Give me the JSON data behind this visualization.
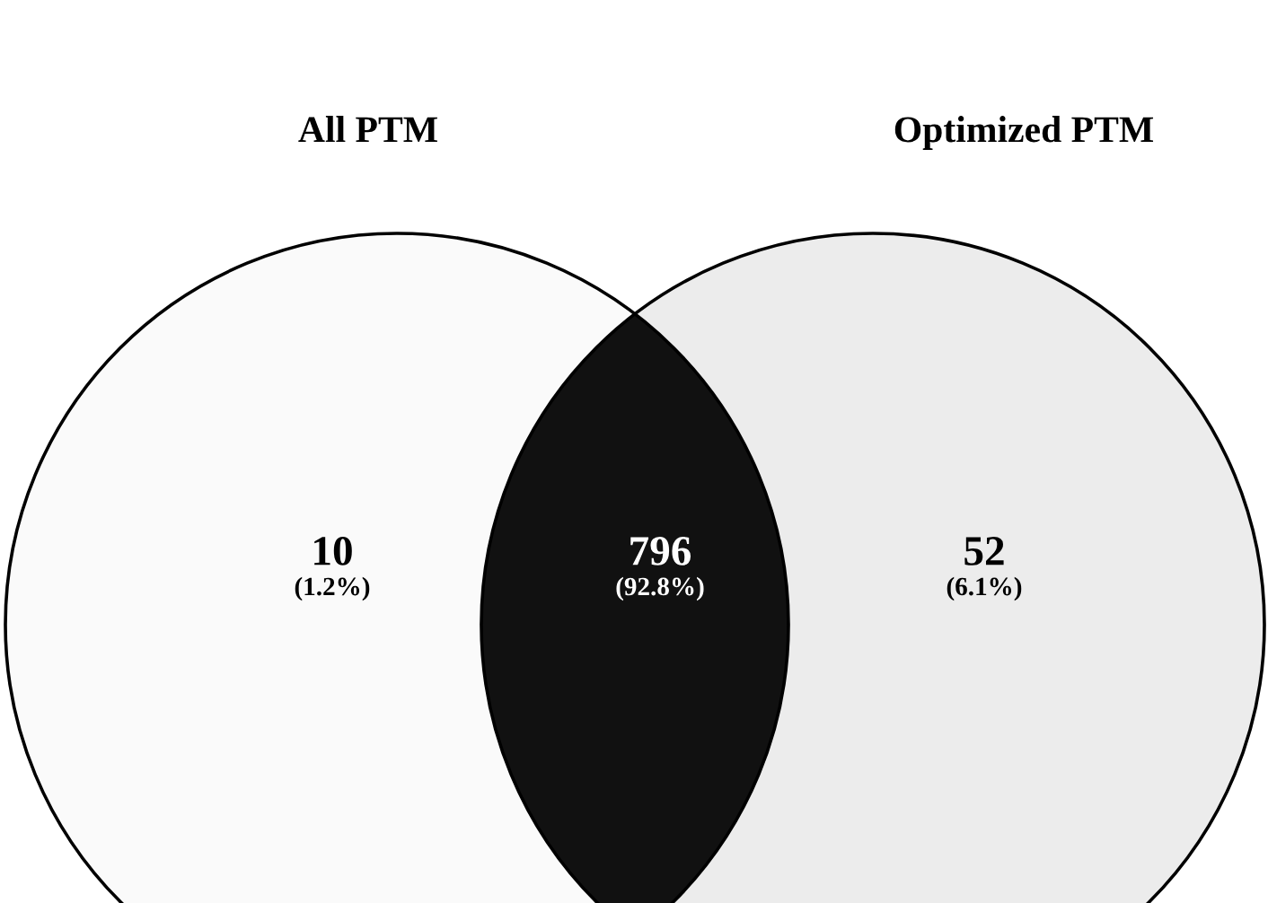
{
  "chart_data": {
    "type": "other",
    "categories": [
      null,
      null,
      null
    ],
    "values": [
      10,
      796,
      52
    ],
    "data_labels": true,
    "colors": [
      "#fafafa",
      "#111111",
      "#ececec"
    ],
    "annotations": [
      "All PTM",
      "Optimized PTM",
      "(1.2%)",
      "(92.8%)",
      "(6.1%)"
    ]
  }
}
